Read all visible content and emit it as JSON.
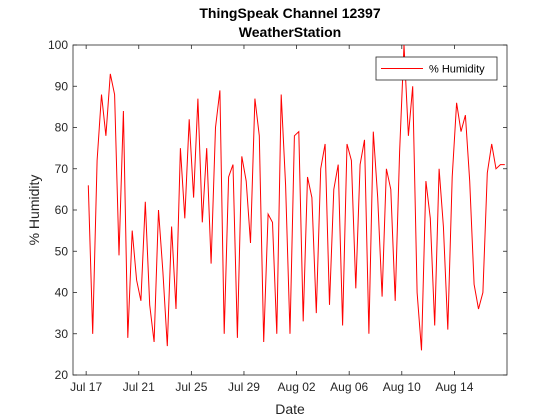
{
  "chart_data": {
    "type": "line",
    "title": "ThingSpeak Channel 12397",
    "subtitle": "WeatherStation",
    "xlabel": "Date",
    "ylabel": "% Humidity",
    "ylim": [
      20,
      100
    ],
    "xlim": [
      "Jul 16",
      "Aug 18"
    ],
    "grid": false,
    "legend_position": "top-right",
    "y_ticks": [
      "20",
      "30",
      "40",
      "50",
      "60",
      "70",
      "80",
      "90",
      "100"
    ],
    "x_ticks": [
      "Jul 17",
      "Jul 21",
      "Jul 25",
      "Jul 29",
      "Aug 02",
      "Aug 06",
      "Aug 10",
      "Aug 14"
    ],
    "series": [
      {
        "name": "% Humidity",
        "color": "#ff0000",
        "x": [
          "Jul 17",
          "Jul 17",
          "Jul 17",
          "Jul 18",
          "Jul 18",
          "Jul 18",
          "Jul 19",
          "Jul 19",
          "Jul 19",
          "Jul 20",
          "Jul 20",
          "Jul 20",
          "Jul 21",
          "Jul 21",
          "Jul 21",
          "Jul 22",
          "Jul 22",
          "Jul 22",
          "Jul 23",
          "Jul 23",
          "Jul 23",
          "Jul 24",
          "Jul 24",
          "Jul 24",
          "Jul 25",
          "Jul 25",
          "Jul 25",
          "Jul 26",
          "Jul 26",
          "Jul 26",
          "Jul 27",
          "Jul 27",
          "Jul 27",
          "Jul 28",
          "Jul 28",
          "Jul 28",
          "Jul 29",
          "Jul 29",
          "Jul 29",
          "Jul 30",
          "Jul 30",
          "Jul 30",
          "Jul 31",
          "Jul 31",
          "Jul 31",
          "Aug 01",
          "Aug 01",
          "Aug 01",
          "Aug 02",
          "Aug 02",
          "Aug 02",
          "Aug 03",
          "Aug 03",
          "Aug 03",
          "Aug 04",
          "Aug 04",
          "Aug 04",
          "Aug 05",
          "Aug 05",
          "Aug 05",
          "Aug 06",
          "Aug 06",
          "Aug 06",
          "Aug 07",
          "Aug 07",
          "Aug 07",
          "Aug 08",
          "Aug 08",
          "Aug 08",
          "Aug 09",
          "Aug 09",
          "Aug 09",
          "Aug 10",
          "Aug 10",
          "Aug 10",
          "Aug 11",
          "Aug 11",
          "Aug 11",
          "Aug 12",
          "Aug 12",
          "Aug 12",
          "Aug 13",
          "Aug 13",
          "Aug 13",
          "Aug 14",
          "Aug 14",
          "Aug 14",
          "Aug 15",
          "Aug 15",
          "Aug 15",
          "Aug 16",
          "Aug 16",
          "Aug 16",
          "Aug 17",
          "Aug 17",
          "Aug 17"
        ],
        "values": [
          66,
          30,
          72,
          88,
          78,
          93,
          88,
          49,
          84,
          29,
          55,
          43,
          38,
          62,
          37,
          28,
          60,
          45,
          27,
          56,
          36,
          75,
          58,
          82,
          63,
          87,
          57,
          75,
          47,
          80,
          89,
          30,
          68,
          71,
          29,
          73,
          67,
          52,
          87,
          78,
          28,
          59,
          57,
          30,
          88,
          66,
          30,
          78,
          79,
          33,
          68,
          63,
          35,
          70,
          76,
          37,
          65,
          71,
          32,
          76,
          72,
          41,
          71,
          77,
          30,
          79,
          63,
          39,
          70,
          65,
          38,
          74,
          100,
          78,
          90,
          40,
          26,
          67,
          58,
          32,
          70,
          56,
          31,
          68,
          86,
          79,
          83,
          67,
          42,
          36,
          40,
          69,
          76,
          70,
          71,
          71
        ]
      }
    ]
  }
}
